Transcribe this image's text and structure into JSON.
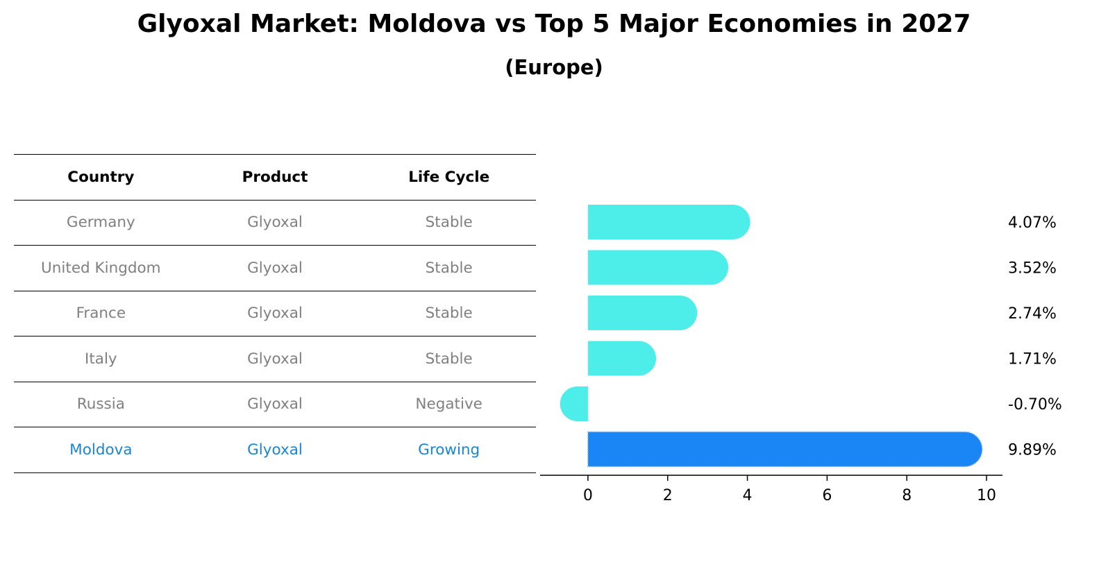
{
  "title": "Glyoxal Market: Moldova vs Top 5 Major Economies in 2027",
  "subtitle": "(Europe)",
  "table": {
    "headers": [
      "Country",
      "Product",
      "Life Cycle"
    ],
    "rows": [
      {
        "country": "Germany",
        "product": "Glyoxal",
        "life_cycle": "Stable"
      },
      {
        "country": "United Kingdom",
        "product": "Glyoxal",
        "life_cycle": "Stable"
      },
      {
        "country": "France",
        "product": "Glyoxal",
        "life_cycle": "Stable"
      },
      {
        "country": "Italy",
        "product": "Glyoxal",
        "life_cycle": "Stable"
      },
      {
        "country": "Russia",
        "product": "Glyoxal",
        "life_cycle": "Negative"
      },
      {
        "country": "Moldova",
        "product": "Glyoxal",
        "life_cycle": "Growing"
      }
    ]
  },
  "chart_data": {
    "type": "bar",
    "orientation": "horizontal",
    "categories": [
      "Germany",
      "United Kingdom",
      "France",
      "Italy",
      "Russia",
      "Moldova"
    ],
    "values": [
      4.07,
      3.52,
      2.74,
      1.71,
      -0.7,
      9.89
    ],
    "value_labels": [
      "4.07%",
      "3.52%",
      "2.74%",
      "1.71%",
      "-0.70%",
      "9.89%"
    ],
    "xlim": [
      -1.2,
      10.4
    ],
    "xticks": [
      0,
      2,
      4,
      6,
      8,
      10
    ],
    "grid": false,
    "colors": {
      "default": "#4dede9",
      "highlight": "#1a85f5",
      "highlight_text": "#1a85d6",
      "muted_text": "#808080"
    },
    "highlight_index": 5
  }
}
